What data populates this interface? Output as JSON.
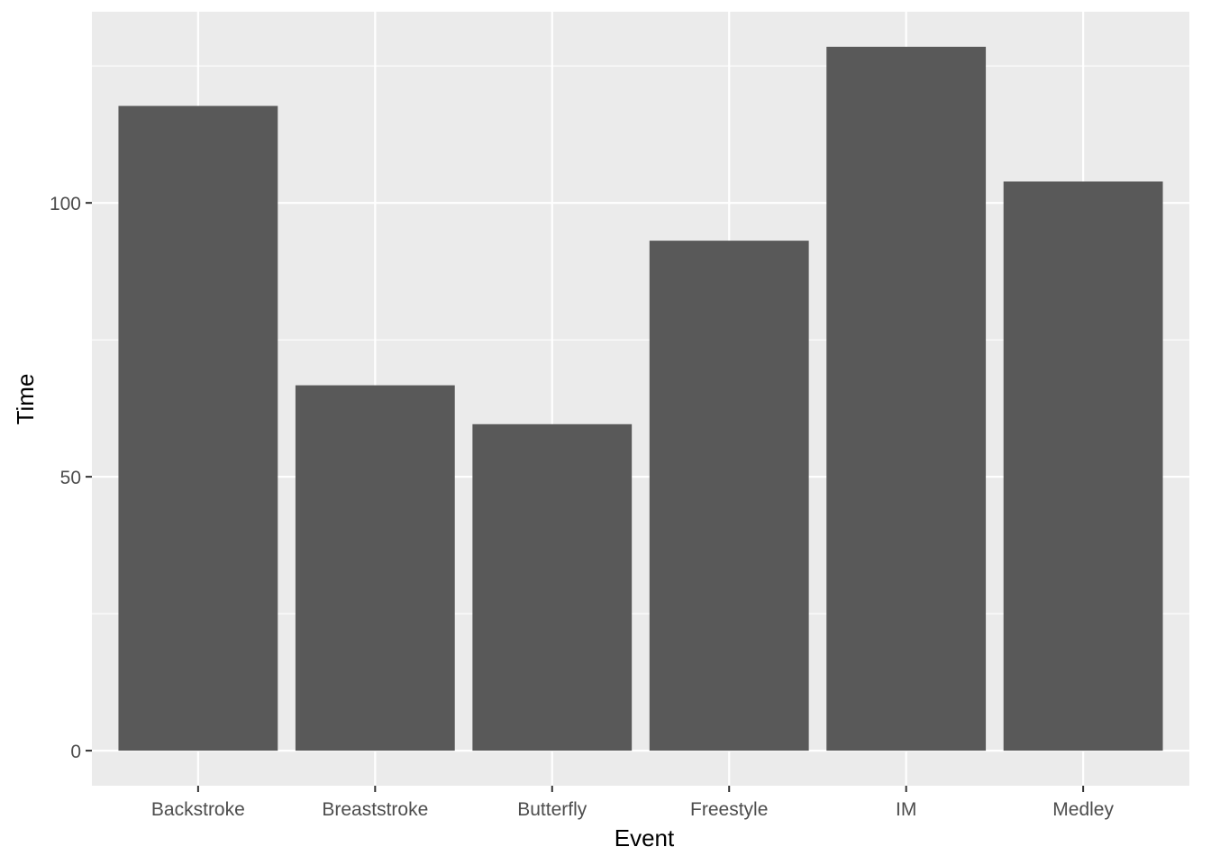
{
  "chart_data": {
    "type": "bar",
    "title": "",
    "xlabel": "Event",
    "ylabel": "Time",
    "categories": [
      "Backstroke",
      "Breaststroke",
      "Butterfly",
      "Freestyle",
      "IM",
      "Medley"
    ],
    "values": [
      117.7,
      66.7,
      59.6,
      93.1,
      128.5,
      103.9
    ],
    "ylim": [
      -6.4,
      134.9
    ],
    "yticks": [
      0,
      50,
      100
    ],
    "ytick_labels": [
      "0",
      "50",
      "100"
    ],
    "grid": true,
    "legend": "none",
    "colors": {
      "panel": "#ebebeb",
      "grid": "#ffffff",
      "bar": "#595959",
      "tick": "#333333"
    }
  }
}
